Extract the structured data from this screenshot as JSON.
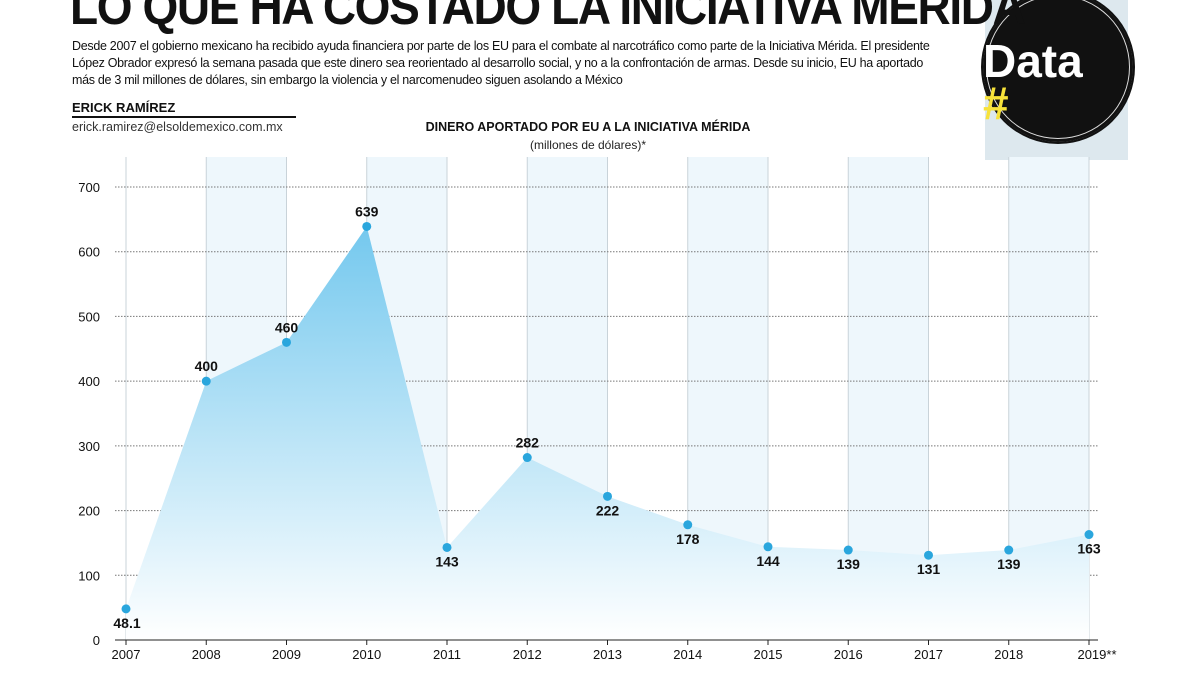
{
  "header": {
    "title": "LO QUE HA COSTADO LA INICIATIVA MÉRIDA",
    "intro": "Desde 2007 el gobierno mexicano ha recibido ayuda financiera por parte de los EU para el combate al narcotráfico como parte de la Iniciativa Mérida. El presidente López Obrador expresó la semana pasada que este dinero sea reorientado al desarrollo social, y no a la confrontación de armas. Desde su inicio, EU ha aportado más de 3 mil millones de dólares, sin embargo la violencia y el narcomenudeo siguen asolando a México",
    "author": "ERICK RAMÍREZ",
    "email": "erick.ramirez@elsoldemexico.com.mx",
    "logo": {
      "hash": "#",
      "text": "Data"
    }
  },
  "chart_data": {
    "type": "area",
    "title": "DINERO APORTADO POR EU A LA INICIATIVA MÉRIDA",
    "subtitle": "(millones de dólares)*",
    "categories": [
      "2007",
      "2008",
      "2009",
      "2010",
      "2011",
      "2012",
      "2013",
      "2014",
      "2015",
      "2016",
      "2017",
      "2018",
      "2019**"
    ],
    "values": [
      48.1,
      400,
      460,
      639,
      143,
      282,
      222,
      178,
      144,
      139,
      131,
      139,
      163
    ],
    "value_labels": [
      "48.1",
      "400",
      "460",
      "639",
      "143",
      "282",
      "222",
      "178",
      "144",
      "139",
      "131",
      "139",
      "163"
    ],
    "yticks": [
      0,
      100,
      200,
      300,
      400,
      500,
      600,
      700
    ],
    "ylim": [
      0,
      700
    ],
    "grid": "dotted horizontal",
    "colors": {
      "area_top": "#74c8ee",
      "area_bottom": "#ffffff",
      "point": "#2aa6dd",
      "band": "#eef7fc"
    }
  }
}
